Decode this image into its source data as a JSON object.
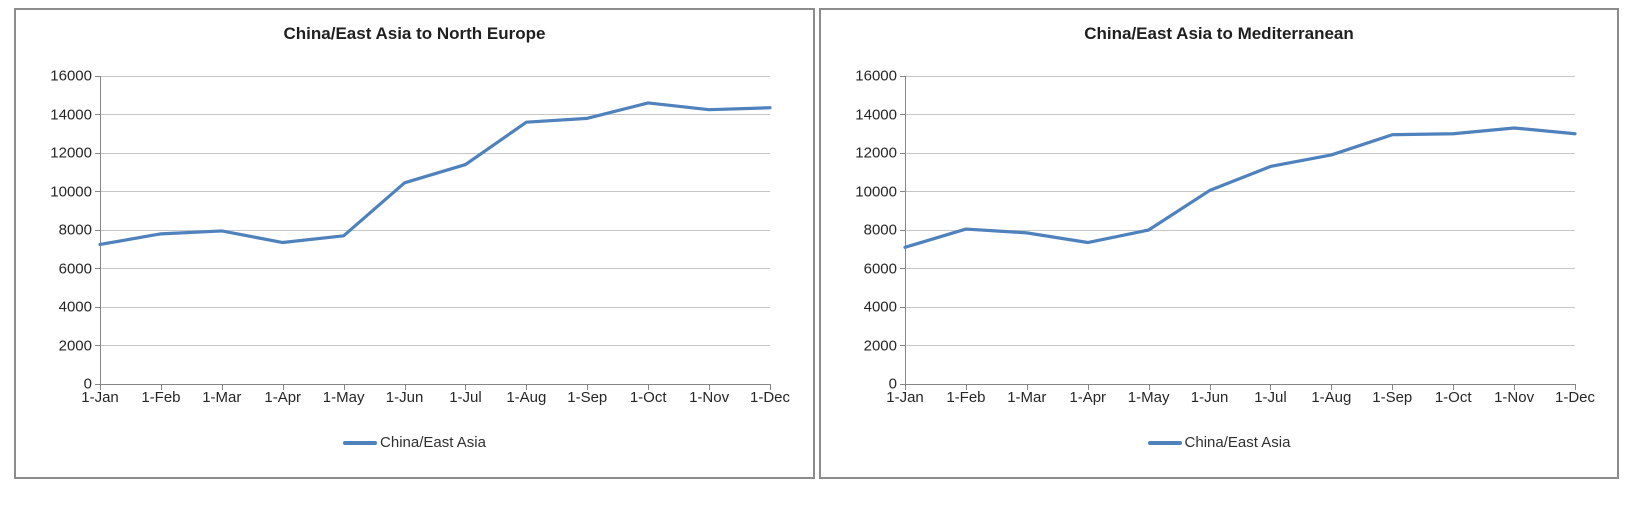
{
  "page": {
    "background": "#ffffff"
  },
  "colors": {
    "series_line": "#4f81bd",
    "gridline": "#c6c6c6",
    "axis": "#868686",
    "panel_border": "#8c8c8c",
    "title_text": "#1f1f1f",
    "tick_text": "#262626"
  },
  "chart_data": [
    {
      "type": "line",
      "title": "China/East Asia to North Europe",
      "categories": [
        "1-Jan",
        "1-Feb",
        "1-Mar",
        "1-Apr",
        "1-May",
        "1-Jun",
        "1-Jul",
        "1-Aug",
        "1-Sep",
        "1-Oct",
        "1-Nov",
        "1-Dec"
      ],
      "series": [
        {
          "name": "China/East Asia",
          "color": "#4f81bd",
          "values": [
            7250,
            7800,
            7950,
            7350,
            7700,
            10450,
            11400,
            13600,
            13800,
            14600,
            14250,
            14350
          ]
        }
      ],
      "xlabel": "",
      "ylabel": "",
      "ylim": [
        0,
        16000
      ],
      "ytick_interval": 2000,
      "ytick_labels": [
        "0",
        "2000",
        "4000",
        "6000",
        "8000",
        "10000",
        "12000",
        "14000",
        "16000"
      ],
      "grid": true,
      "legend_position": "bottom"
    },
    {
      "type": "line",
      "title": "China/East Asia to Mediterranean",
      "categories": [
        "1-Jan",
        "1-Feb",
        "1-Mar",
        "1-Apr",
        "1-May",
        "1-Jun",
        "1-Jul",
        "1-Aug",
        "1-Sep",
        "1-Oct",
        "1-Nov",
        "1-Dec"
      ],
      "series": [
        {
          "name": "China/East Asia",
          "color": "#4f81bd",
          "values": [
            7100,
            8050,
            7850,
            7350,
            8000,
            10050,
            11300,
            11900,
            12950,
            13000,
            13300,
            13000
          ]
        }
      ],
      "xlabel": "",
      "ylabel": "",
      "ylim": [
        0,
        16000
      ],
      "ytick_interval": 2000,
      "ytick_labels": [
        "0",
        "2000",
        "4000",
        "6000",
        "8000",
        "10000",
        "12000",
        "14000",
        "16000"
      ],
      "grid": true,
      "legend_position": "bottom"
    }
  ]
}
